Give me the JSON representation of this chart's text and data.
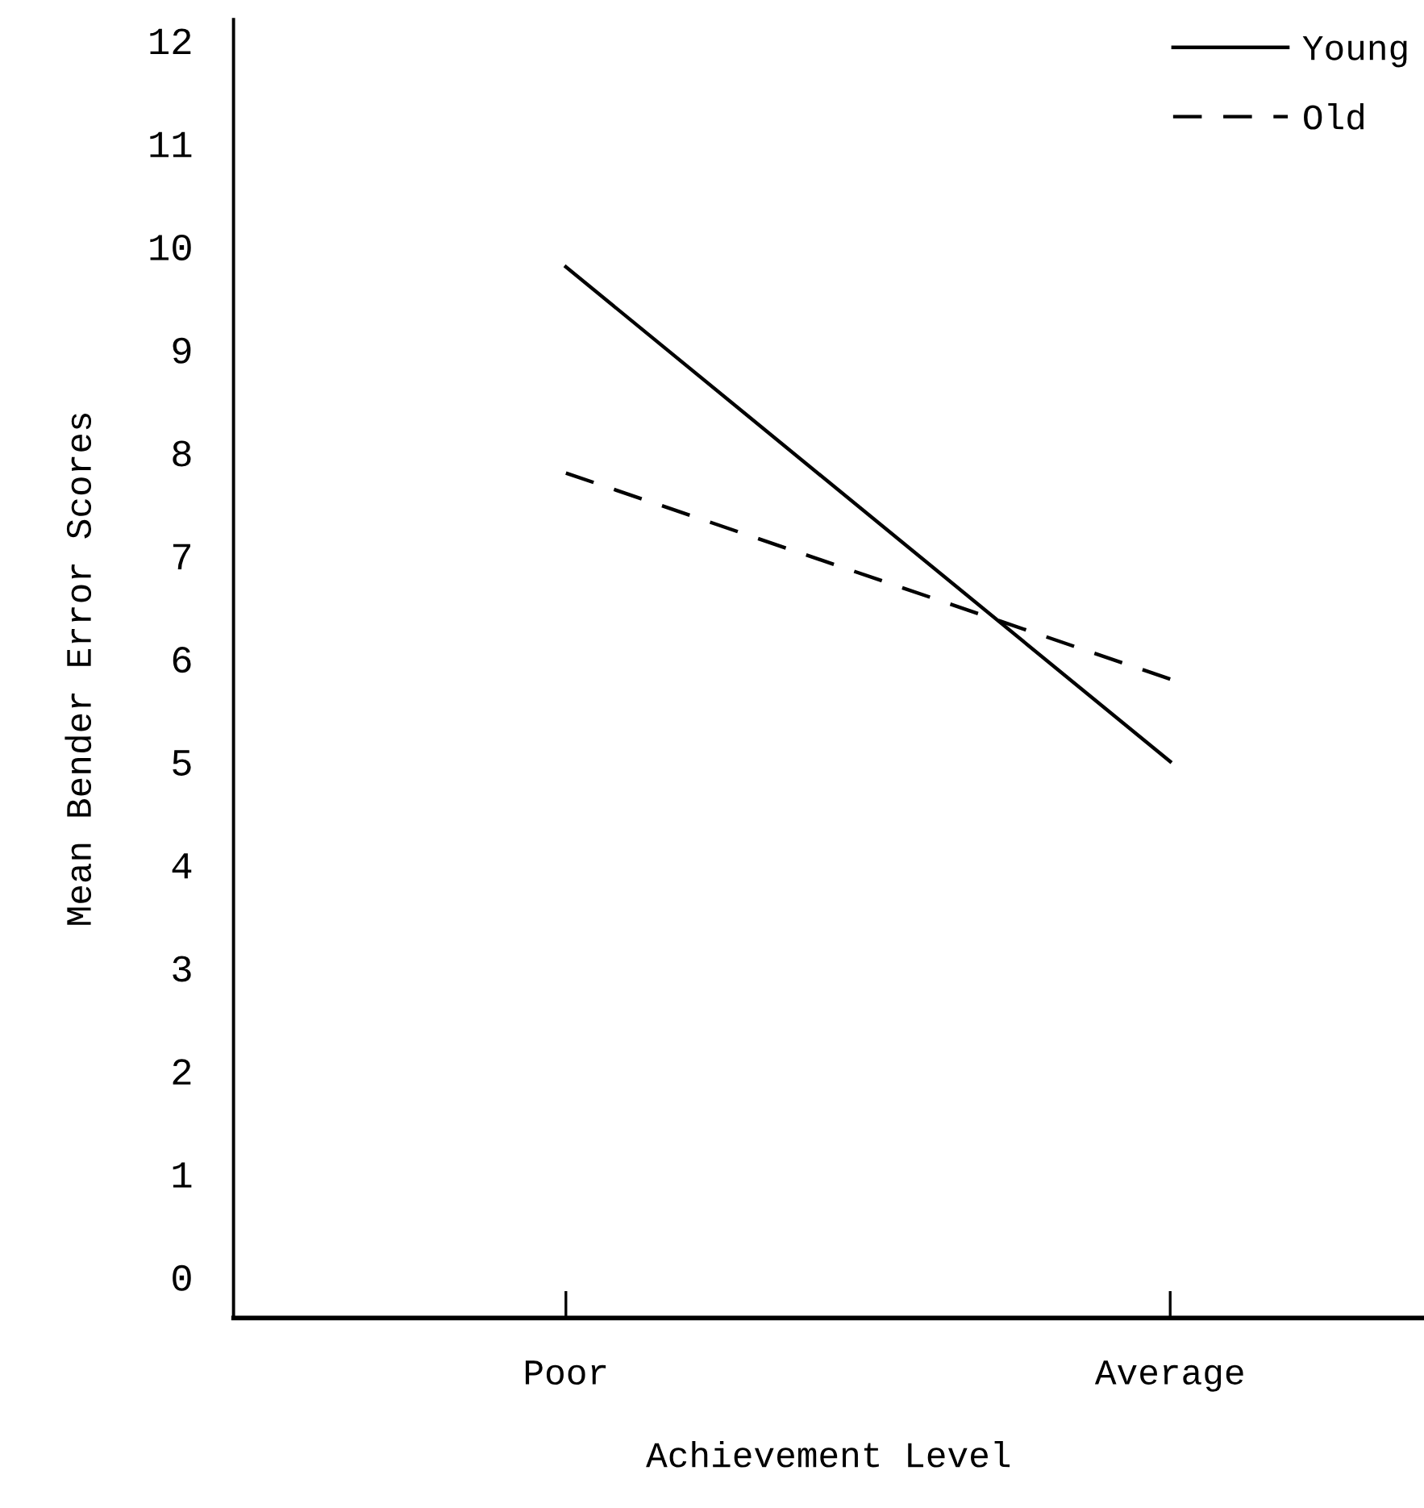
{
  "chart_data": {
    "type": "line",
    "xlabel": "Achievement Level",
    "ylabel": "Mean Bender Error Scores",
    "categories": [
      "Poor",
      "Average"
    ],
    "series": [
      {
        "name": "Young",
        "color": "#000000",
        "values": [
          9.8,
          5.0
        ],
        "line_style": "solid"
      },
      {
        "name": "Old",
        "color": "#000000",
        "values": [
          7.8,
          5.8
        ],
        "line_style": "dashed"
      }
    ],
    "ylim": [
      -0.4,
      12.2
    ],
    "yticks": [
      0,
      1,
      2,
      3,
      4,
      5,
      6,
      7,
      8,
      9,
      10,
      11,
      12
    ],
    "grid": false,
    "legend": "top right",
    "marker": "none"
  }
}
